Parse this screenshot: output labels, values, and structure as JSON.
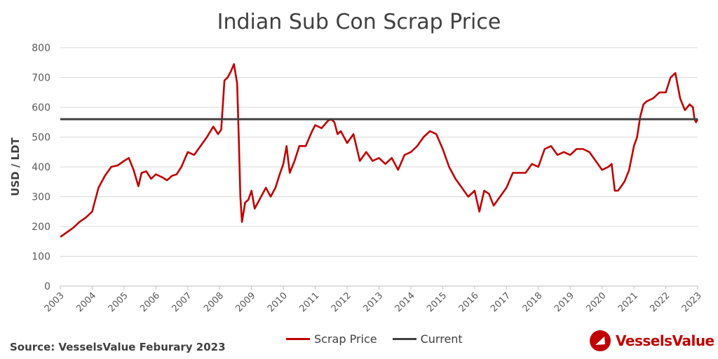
{
  "chart_data": {
    "type": "line",
    "title": "Indian Sub Con Scrap Price",
    "ylabel": "USD / LDT",
    "xlabel": "",
    "ylim": [
      0,
      800
    ],
    "yticks": [
      0,
      100,
      200,
      300,
      400,
      500,
      600,
      700,
      800
    ],
    "xlim": [
      2003,
      2023
    ],
    "xticks": [
      "2003",
      "2004",
      "2005",
      "2006",
      "2007",
      "2008",
      "2009",
      "2010",
      "2011",
      "2012",
      "2013",
      "2014",
      "2015",
      "2016",
      "2017",
      "2018",
      "2019",
      "2020",
      "2021",
      "2022",
      "2023"
    ],
    "grid": "horizontal",
    "legend_position": "bottom",
    "series": [
      {
        "name": "Scrap Price",
        "color": "#c00000",
        "x": [
          2003.0,
          2003.2,
          2003.4,
          2003.6,
          2003.8,
          2004.0,
          2004.2,
          2004.4,
          2004.6,
          2004.8,
          2005.0,
          2005.15,
          2005.3,
          2005.45,
          2005.55,
          2005.7,
          2005.85,
          2006.0,
          2006.2,
          2006.35,
          2006.5,
          2006.65,
          2006.8,
          2007.0,
          2007.2,
          2007.4,
          2007.6,
          2007.8,
          2007.95,
          2008.05,
          2008.15,
          2008.25,
          2008.35,
          2008.45,
          2008.55,
          2008.6,
          2008.65,
          2008.7,
          2008.8,
          2008.9,
          2009.0,
          2009.1,
          2009.2,
          2009.3,
          2009.45,
          2009.6,
          2009.75,
          2009.9,
          2010.0,
          2010.1,
          2010.2,
          2010.35,
          2010.5,
          2010.7,
          2010.9,
          2011.0,
          2011.2,
          2011.4,
          2011.5,
          2011.6,
          2011.7,
          2011.8,
          2012.0,
          2012.2,
          2012.4,
          2012.6,
          2012.8,
          2013.0,
          2013.2,
          2013.4,
          2013.6,
          2013.8,
          2014.0,
          2014.2,
          2014.4,
          2014.6,
          2014.8,
          2015.0,
          2015.2,
          2015.4,
          2015.6,
          2015.8,
          2016.0,
          2016.15,
          2016.3,
          2016.45,
          2016.6,
          2016.8,
          2017.0,
          2017.2,
          2017.4,
          2017.6,
          2017.8,
          2018.0,
          2018.2,
          2018.4,
          2018.6,
          2018.8,
          2019.0,
          2019.2,
          2019.4,
          2019.6,
          2019.8,
          2020.0,
          2020.2,
          2020.3,
          2020.4,
          2020.5,
          2020.7,
          2020.85,
          2021.0,
          2021.1,
          2021.2,
          2021.3,
          2021.4,
          2021.6,
          2021.8,
          2022.0,
          2022.15,
          2022.3,
          2022.45,
          2022.6,
          2022.75,
          2022.85,
          2022.9,
          2022.95,
          2023.0
        ],
        "values": [
          165,
          180,
          195,
          215,
          230,
          250,
          330,
          370,
          400,
          405,
          420,
          430,
          390,
          335,
          380,
          385,
          360,
          375,
          365,
          355,
          370,
          375,
          400,
          450,
          440,
          470,
          500,
          535,
          510,
          525,
          690,
          700,
          720,
          745,
          680,
          500,
          300,
          215,
          280,
          290,
          320,
          260,
          280,
          300,
          330,
          300,
          330,
          380,
          410,
          470,
          380,
          420,
          470,
          470,
          520,
          540,
          530,
          555,
          560,
          550,
          510,
          520,
          480,
          510,
          420,
          450,
          420,
          430,
          410,
          430,
          390,
          440,
          450,
          470,
          500,
          520,
          510,
          460,
          400,
          360,
          330,
          300,
          320,
          250,
          320,
          310,
          270,
          300,
          330,
          380,
          380,
          380,
          410,
          400,
          460,
          470,
          440,
          450,
          440,
          460,
          460,
          450,
          420,
          390,
          400,
          410,
          320,
          320,
          350,
          390,
          470,
          500,
          570,
          610,
          620,
          630,
          650,
          650,
          700,
          715,
          630,
          590,
          610,
          600,
          560,
          550,
          560
        ]
      },
      {
        "name": "Current",
        "color": "#404040",
        "x": [
          2003,
          2023
        ],
        "values": [
          560,
          560
        ]
      }
    ]
  },
  "footer": {
    "source": "Source: VesselsValue Feburary 2023",
    "brand": "VesselsValue",
    "brand_logo_icon": "vesselsvalue-logo-icon"
  }
}
